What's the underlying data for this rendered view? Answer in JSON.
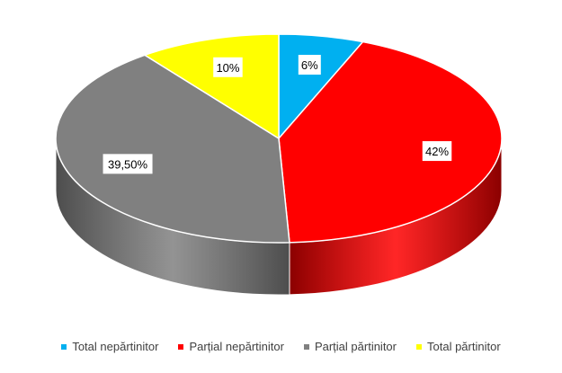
{
  "chart_data": {
    "type": "pie",
    "categories": [
      "Total nepărtinitor",
      "Parțial nepărtinitor",
      "Parțial părtinitor",
      "Total părtinitor"
    ],
    "values": [
      6,
      42,
      39.5,
      10
    ],
    "value_labels": [
      "6%",
      "42%",
      "39,50%",
      "10%"
    ],
    "colors": [
      "#00B0F0",
      "#FF0000",
      "#808080",
      "#FFFF00"
    ],
    "dark_colors": [
      "#007BA8",
      "#8B0000",
      "#4D4D4D",
      "#A6A600"
    ],
    "style": "3d",
    "legend": "bottom"
  }
}
